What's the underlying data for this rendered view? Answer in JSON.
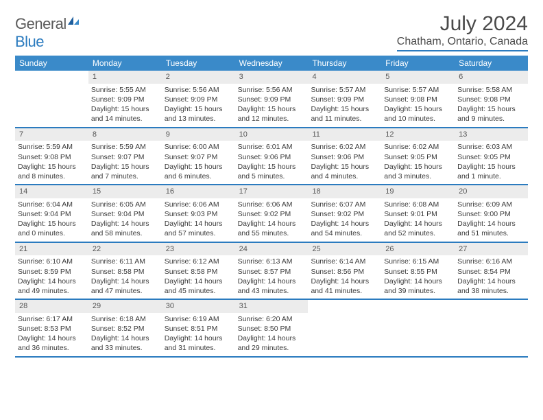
{
  "brand": {
    "text1": "General",
    "text2": "Blue"
  },
  "title": "July 2024",
  "location": "Chatham, Ontario, Canada",
  "colors": {
    "header_bg": "#3a8ac9",
    "rule": "#2b7bbf",
    "daynum_bg": "#ececec",
    "text": "#3a3a3a"
  },
  "day_labels": [
    "Sunday",
    "Monday",
    "Tuesday",
    "Wednesday",
    "Thursday",
    "Friday",
    "Saturday"
  ],
  "weeks": [
    [
      {
        "n": "",
        "empty": true
      },
      {
        "n": "1",
        "sr": "Sunrise: 5:55 AM",
        "ss": "Sunset: 9:09 PM",
        "dl": "Daylight: 15 hours and 14 minutes."
      },
      {
        "n": "2",
        "sr": "Sunrise: 5:56 AM",
        "ss": "Sunset: 9:09 PM",
        "dl": "Daylight: 15 hours and 13 minutes."
      },
      {
        "n": "3",
        "sr": "Sunrise: 5:56 AM",
        "ss": "Sunset: 9:09 PM",
        "dl": "Daylight: 15 hours and 12 minutes."
      },
      {
        "n": "4",
        "sr": "Sunrise: 5:57 AM",
        "ss": "Sunset: 9:09 PM",
        "dl": "Daylight: 15 hours and 11 minutes."
      },
      {
        "n": "5",
        "sr": "Sunrise: 5:57 AM",
        "ss": "Sunset: 9:08 PM",
        "dl": "Daylight: 15 hours and 10 minutes."
      },
      {
        "n": "6",
        "sr": "Sunrise: 5:58 AM",
        "ss": "Sunset: 9:08 PM",
        "dl": "Daylight: 15 hours and 9 minutes."
      }
    ],
    [
      {
        "n": "7",
        "sr": "Sunrise: 5:59 AM",
        "ss": "Sunset: 9:08 PM",
        "dl": "Daylight: 15 hours and 8 minutes."
      },
      {
        "n": "8",
        "sr": "Sunrise: 5:59 AM",
        "ss": "Sunset: 9:07 PM",
        "dl": "Daylight: 15 hours and 7 minutes."
      },
      {
        "n": "9",
        "sr": "Sunrise: 6:00 AM",
        "ss": "Sunset: 9:07 PM",
        "dl": "Daylight: 15 hours and 6 minutes."
      },
      {
        "n": "10",
        "sr": "Sunrise: 6:01 AM",
        "ss": "Sunset: 9:06 PM",
        "dl": "Daylight: 15 hours and 5 minutes."
      },
      {
        "n": "11",
        "sr": "Sunrise: 6:02 AM",
        "ss": "Sunset: 9:06 PM",
        "dl": "Daylight: 15 hours and 4 minutes."
      },
      {
        "n": "12",
        "sr": "Sunrise: 6:02 AM",
        "ss": "Sunset: 9:05 PM",
        "dl": "Daylight: 15 hours and 3 minutes."
      },
      {
        "n": "13",
        "sr": "Sunrise: 6:03 AM",
        "ss": "Sunset: 9:05 PM",
        "dl": "Daylight: 15 hours and 1 minute."
      }
    ],
    [
      {
        "n": "14",
        "sr": "Sunrise: 6:04 AM",
        "ss": "Sunset: 9:04 PM",
        "dl": "Daylight: 15 hours and 0 minutes."
      },
      {
        "n": "15",
        "sr": "Sunrise: 6:05 AM",
        "ss": "Sunset: 9:04 PM",
        "dl": "Daylight: 14 hours and 58 minutes."
      },
      {
        "n": "16",
        "sr": "Sunrise: 6:06 AM",
        "ss": "Sunset: 9:03 PM",
        "dl": "Daylight: 14 hours and 57 minutes."
      },
      {
        "n": "17",
        "sr": "Sunrise: 6:06 AM",
        "ss": "Sunset: 9:02 PM",
        "dl": "Daylight: 14 hours and 55 minutes."
      },
      {
        "n": "18",
        "sr": "Sunrise: 6:07 AM",
        "ss": "Sunset: 9:02 PM",
        "dl": "Daylight: 14 hours and 54 minutes."
      },
      {
        "n": "19",
        "sr": "Sunrise: 6:08 AM",
        "ss": "Sunset: 9:01 PM",
        "dl": "Daylight: 14 hours and 52 minutes."
      },
      {
        "n": "20",
        "sr": "Sunrise: 6:09 AM",
        "ss": "Sunset: 9:00 PM",
        "dl": "Daylight: 14 hours and 51 minutes."
      }
    ],
    [
      {
        "n": "21",
        "sr": "Sunrise: 6:10 AM",
        "ss": "Sunset: 8:59 PM",
        "dl": "Daylight: 14 hours and 49 minutes."
      },
      {
        "n": "22",
        "sr": "Sunrise: 6:11 AM",
        "ss": "Sunset: 8:58 PM",
        "dl": "Daylight: 14 hours and 47 minutes."
      },
      {
        "n": "23",
        "sr": "Sunrise: 6:12 AM",
        "ss": "Sunset: 8:58 PM",
        "dl": "Daylight: 14 hours and 45 minutes."
      },
      {
        "n": "24",
        "sr": "Sunrise: 6:13 AM",
        "ss": "Sunset: 8:57 PM",
        "dl": "Daylight: 14 hours and 43 minutes."
      },
      {
        "n": "25",
        "sr": "Sunrise: 6:14 AM",
        "ss": "Sunset: 8:56 PM",
        "dl": "Daylight: 14 hours and 41 minutes."
      },
      {
        "n": "26",
        "sr": "Sunrise: 6:15 AM",
        "ss": "Sunset: 8:55 PM",
        "dl": "Daylight: 14 hours and 39 minutes."
      },
      {
        "n": "27",
        "sr": "Sunrise: 6:16 AM",
        "ss": "Sunset: 8:54 PM",
        "dl": "Daylight: 14 hours and 38 minutes."
      }
    ],
    [
      {
        "n": "28",
        "sr": "Sunrise: 6:17 AM",
        "ss": "Sunset: 8:53 PM",
        "dl": "Daylight: 14 hours and 36 minutes."
      },
      {
        "n": "29",
        "sr": "Sunrise: 6:18 AM",
        "ss": "Sunset: 8:52 PM",
        "dl": "Daylight: 14 hours and 33 minutes."
      },
      {
        "n": "30",
        "sr": "Sunrise: 6:19 AM",
        "ss": "Sunset: 8:51 PM",
        "dl": "Daylight: 14 hours and 31 minutes."
      },
      {
        "n": "31",
        "sr": "Sunrise: 6:20 AM",
        "ss": "Sunset: 8:50 PM",
        "dl": "Daylight: 14 hours and 29 minutes."
      },
      {
        "n": "",
        "empty": true
      },
      {
        "n": "",
        "empty": true
      },
      {
        "n": "",
        "empty": true
      }
    ]
  ]
}
